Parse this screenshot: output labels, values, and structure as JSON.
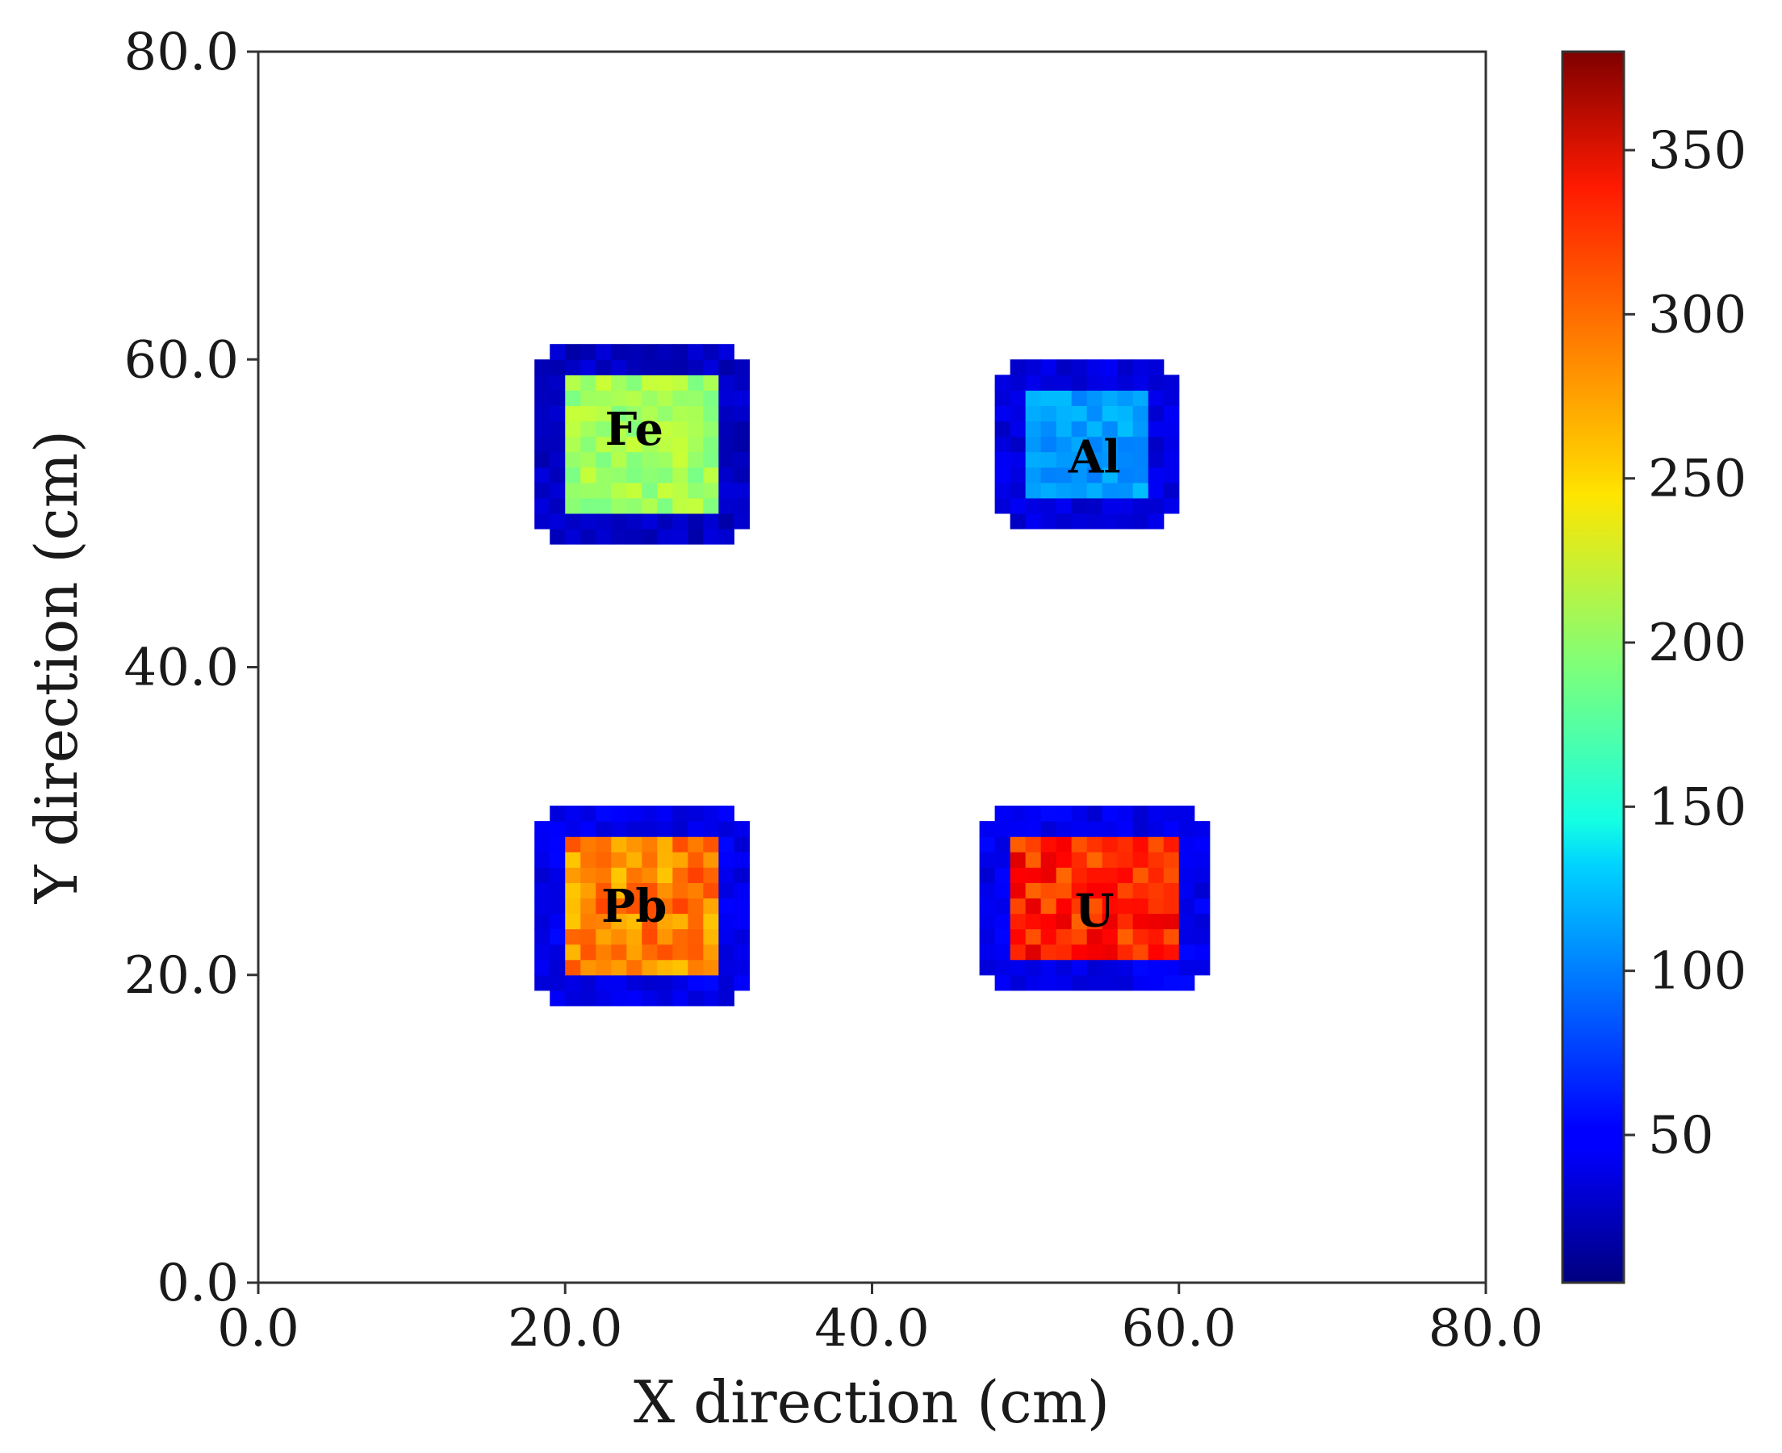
{
  "chart_data": {
    "type": "heatmap",
    "xlabel": "X direction (cm)",
    "ylabel": "Y direction (cm)",
    "xlim": [
      0,
      80
    ],
    "ylim": [
      0,
      80
    ],
    "x_ticks": [
      0,
      20,
      40,
      60,
      80
    ],
    "x_tick_labels": [
      "0.0",
      "20.0",
      "40.0",
      "60.0",
      "80.0"
    ],
    "y_ticks": [
      0,
      20,
      40,
      60,
      80
    ],
    "y_tick_labels": [
      "0.0",
      "20.0",
      "40.0",
      "60.0",
      "80.0"
    ],
    "cell_size_cm": 1,
    "background": "#ffffff",
    "colorbar": {
      "colormap": "jet",
      "vmin": 5,
      "vmax": 380,
      "ticks": [
        50,
        100,
        150,
        200,
        250,
        300,
        350
      ],
      "tick_labels": [
        "50",
        "100",
        "150",
        "200",
        "250",
        "300",
        "350"
      ]
    },
    "regions": [
      {
        "label": "Fe",
        "x_range": [
          18,
          32
        ],
        "y_range": [
          48,
          61
        ],
        "edge_value": 30,
        "interior_value": 205,
        "variation": 15,
        "label_x": 24.5,
        "label_y": 55.5
      },
      {
        "label": "Al",
        "x_range": [
          48,
          60
        ],
        "y_range": [
          49,
          60
        ],
        "edge_value": 40,
        "interior_value": 110,
        "variation": 12,
        "label_x": 54.5,
        "label_y": 53.7
      },
      {
        "label": "Pb",
        "x_range": [
          18,
          32
        ],
        "y_range": [
          18,
          31
        ],
        "edge_value": 45,
        "interior_value": 285,
        "variation": 25,
        "label_x": 24.5,
        "label_y": 24.5
      },
      {
        "label": "U",
        "x_range": [
          47,
          62
        ],
        "y_range": [
          19,
          31
        ],
        "edge_value": 45,
        "interior_value": 320,
        "variation": 25,
        "label_x": 54.5,
        "label_y": 24.2
      }
    ]
  }
}
